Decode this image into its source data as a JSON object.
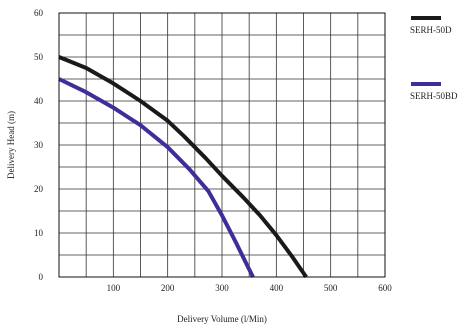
{
  "chart_data": {
    "type": "line",
    "xlabel": "Delivery Volume (l/Min)",
    "ylabel": "Delivery Head (m)",
    "xlim": [
      0,
      600
    ],
    "ylim": [
      0,
      60
    ],
    "x_ticks": [
      100,
      200,
      300,
      400,
      500,
      600
    ],
    "y_ticks": [
      0,
      10,
      20,
      30,
      40,
      50,
      60
    ],
    "grid": "on",
    "legend_position": "right",
    "series": [
      {
        "name": "SERH-50D",
        "color": "#1a1a1a",
        "points": [
          [
            0,
            50
          ],
          [
            50,
            47.5
          ],
          [
            100,
            44
          ],
          [
            150,
            40
          ],
          [
            200,
            35.5
          ],
          [
            230,
            32
          ],
          [
            270,
            27
          ],
          [
            300,
            23
          ],
          [
            340,
            18
          ],
          [
            370,
            14
          ],
          [
            400,
            9.5
          ],
          [
            430,
            4.5
          ],
          [
            455,
            0
          ]
        ]
      },
      {
        "name": "SERH-50BD",
        "color": "#3f2e99",
        "points": [
          [
            0,
            45
          ],
          [
            50,
            42
          ],
          [
            100,
            38.5
          ],
          [
            150,
            34.5
          ],
          [
            200,
            29.5
          ],
          [
            240,
            24.5
          ],
          [
            275,
            19.5
          ],
          [
            300,
            14
          ],
          [
            325,
            8
          ],
          [
            345,
            3
          ],
          [
            357,
            0
          ]
        ]
      }
    ]
  }
}
